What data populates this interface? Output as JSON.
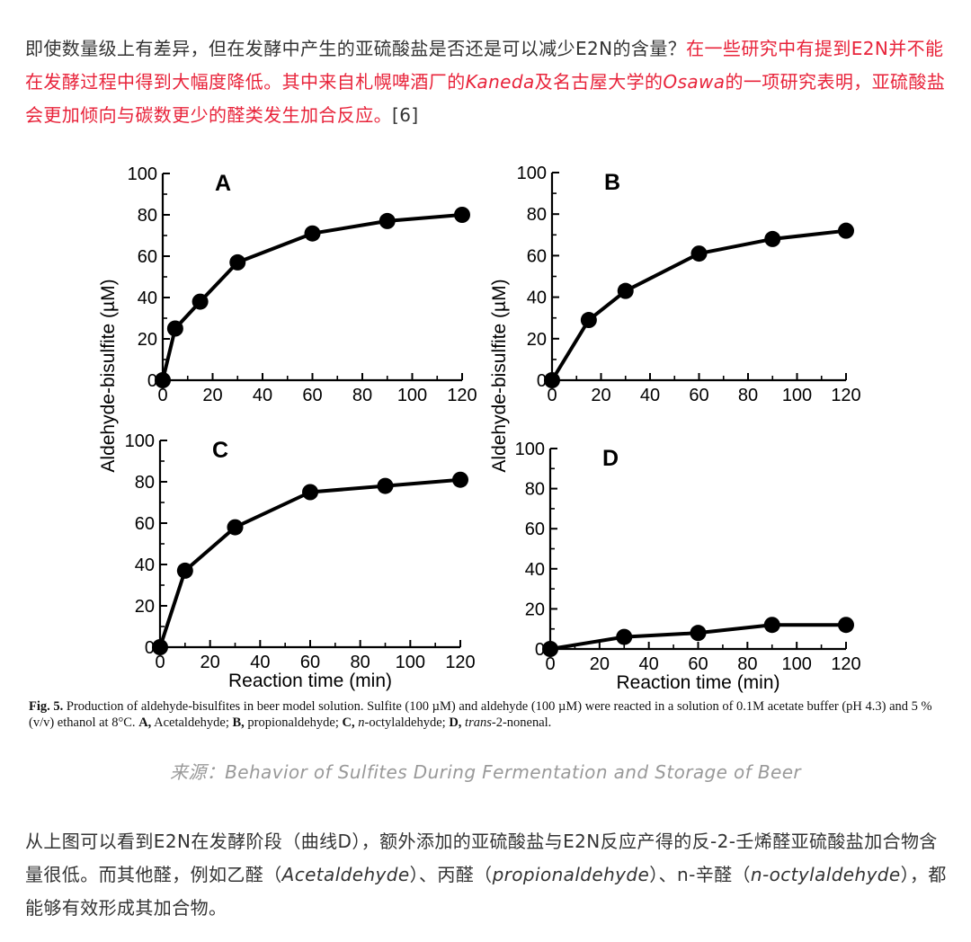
{
  "intro": {
    "plain": "即使数量级上有差异，但在发酵中产生的亚硫酸盐是否还是可以减少E2N的含量？",
    "red1": "在一些研究中有提到E2N并不能在发酵过程中得到大幅度降低。其中来自札幌啤酒厂的",
    "red_italic1": "Kaneda",
    "red2": "及名古屋大学的",
    "red_italic2": "Osawa",
    "red3": "的一项研究表明，亚硫酸盐会更加倾向与碳数更少的醛类发生加合反应。",
    "ref": "[6]"
  },
  "chart_data": [
    {
      "type": "line",
      "panel": "A",
      "x": [
        0,
        5,
        15,
        30,
        60,
        90,
        120
      ],
      "values": [
        0,
        25,
        38,
        57,
        71,
        77,
        80
      ],
      "xlim": [
        0,
        120
      ],
      "ylim": [
        0,
        100
      ],
      "xticks": [
        0,
        20,
        40,
        60,
        80,
        100,
        120
      ],
      "yticks": [
        0,
        20,
        40,
        60,
        80,
        100
      ],
      "xlabel": "",
      "ylabel": "Aldehyde-bisulfite (µM)"
    },
    {
      "type": "line",
      "panel": "B",
      "x": [
        0,
        15,
        30,
        60,
        90,
        120
      ],
      "values": [
        0,
        29,
        43,
        61,
        68,
        72
      ],
      "xlim": [
        0,
        120
      ],
      "ylim": [
        0,
        100
      ],
      "xticks": [
        0,
        20,
        40,
        60,
        80,
        100,
        120
      ],
      "yticks": [
        0,
        20,
        40,
        60,
        80,
        100
      ],
      "xlabel": "",
      "ylabel": ""
    },
    {
      "type": "line",
      "panel": "C",
      "x": [
        0,
        10,
        30,
        60,
        90,
        120
      ],
      "values": [
        0,
        37,
        58,
        75,
        78,
        81
      ],
      "xlim": [
        0,
        120
      ],
      "ylim": [
        0,
        100
      ],
      "xticks": [
        0,
        20,
        40,
        60,
        80,
        100,
        120
      ],
      "yticks": [
        0,
        20,
        40,
        60,
        80,
        100
      ],
      "xlabel": "Reaction time (min)",
      "ylabel": ""
    },
    {
      "type": "line",
      "panel": "D",
      "x": [
        0,
        30,
        60,
        90,
        120
      ],
      "values": [
        0,
        6,
        8,
        12,
        12
      ],
      "xlim": [
        0,
        120
      ],
      "ylim": [
        0,
        100
      ],
      "xticks": [
        0,
        20,
        40,
        60,
        80,
        100,
        120
      ],
      "yticks": [
        0,
        20,
        40,
        60,
        80,
        100
      ],
      "xlabel": "Reaction time (min)",
      "ylabel": "Aldehyde-bisulfite (µM)"
    }
  ],
  "caption": {
    "fig_label": "Fig. 5.",
    "text1": " Production of aldehyde-bisulfites in beer model solution. Sulfite (100 µM) and aldehyde (100 µM) were reacted in a solution of 0.1M acetate buffer (pH 4.3) and 5 % (v/v) ethanol at 8°C. ",
    "a_label": "A,",
    "a_text": " Acetaldehyde; ",
    "b_label": "B,",
    "b_text": " propionaldehyde; ",
    "c_label": "C,",
    "c_italic": " n",
    "c_text": "-octylaldehyde; ",
    "d_label": "D,",
    "d_italic": " trans",
    "d_text": "-2-nonenal."
  },
  "source": "来源：Behavior of Sulfites During Fermentation and Storage of Beer",
  "para2": {
    "t1": "从上图可以看到E2N在发酵阶段（曲线D），额外添加的亚硫酸盐与E2N反应产得的反-2-壬烯醛亚硫酸盐加合物含量很低。而其他醛，例如乙醛（",
    "i1": "Acetaldehyde",
    "t2": "）、丙醛（",
    "i2": "propionaldehyde",
    "t3": "）、n-辛醛（",
    "i3": "n-octylaldehyde",
    "t4": "），都能够有效形成其加合物。"
  }
}
